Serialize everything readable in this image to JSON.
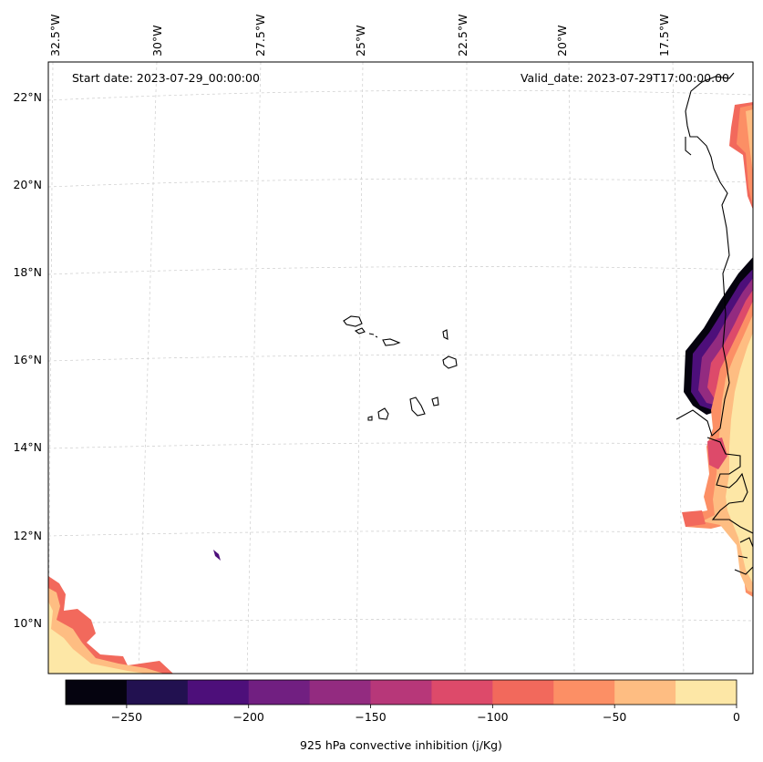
{
  "header": {
    "start_date": "Start date: 2023-07-29_00:00:00",
    "valid_date": "Valid_date: 2023-07-29T17:00:00.00"
  },
  "axes": {
    "lon_labels": [
      "32.5°W",
      "30°W",
      "27.5°W",
      "25°W",
      "22.5°W",
      "20°W",
      "17.5°W"
    ],
    "lat_labels": [
      "22°N",
      "20°N",
      "18°N",
      "16°N",
      "14°N",
      "12°N",
      "10°N"
    ]
  },
  "colorbar": {
    "label": "925 hPa convective inhibition (j/Kg)",
    "ticks": [
      "−250",
      "−200",
      "−150",
      "−100",
      "−50",
      "0"
    ],
    "range": [
      -275,
      0
    ],
    "step": 25,
    "colors": [
      "#05030f",
      "#221150",
      "#4d0f7a",
      "#711f81",
      "#932b80",
      "#b73779",
      "#dd4a6a",
      "#f2695c",
      "#fc8f65",
      "#febd82",
      "#fde7a6"
    ]
  }
}
